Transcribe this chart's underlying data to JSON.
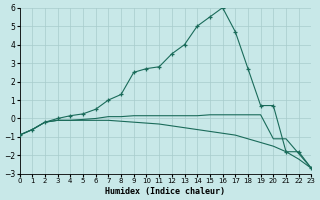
{
  "xlabel": "Humidex (Indice chaleur)",
  "background_color": "#c8e8e8",
  "grid_color": "#a8cccc",
  "line_color": "#1a6b5a",
  "xlim": [
    0,
    23
  ],
  "ylim": [
    -3,
    6
  ],
  "xticks": [
    0,
    1,
    2,
    3,
    4,
    5,
    6,
    7,
    8,
    9,
    10,
    11,
    12,
    13,
    14,
    15,
    16,
    17,
    18,
    19,
    20,
    21,
    22,
    23
  ],
  "yticks": [
    -3,
    -2,
    -1,
    0,
    1,
    2,
    3,
    4,
    5,
    6
  ],
  "line_peaked_x": [
    0,
    1,
    2,
    3,
    4,
    5,
    6,
    7,
    8,
    9,
    10,
    11,
    12,
    13,
    14,
    15,
    16,
    17,
    18,
    19,
    20,
    21,
    22,
    23
  ],
  "line_peaked_y": [
    -0.9,
    -0.6,
    -0.2,
    0.0,
    0.15,
    0.25,
    0.5,
    1.0,
    1.3,
    2.5,
    2.7,
    2.8,
    3.5,
    4.0,
    5.0,
    5.5,
    6.0,
    4.7,
    2.7,
    0.7,
    0.7,
    -1.8,
    -1.8,
    -2.7
  ],
  "line_flat_x": [
    0,
    1,
    2,
    3,
    4,
    5,
    6,
    7,
    8,
    9,
    10,
    11,
    12,
    13,
    14,
    15,
    16,
    17,
    18,
    19,
    20,
    21,
    22,
    23
  ],
  "line_flat_y": [
    -0.9,
    -0.6,
    -0.2,
    -0.1,
    -0.1,
    -0.05,
    0.0,
    0.1,
    0.1,
    0.15,
    0.15,
    0.15,
    0.15,
    0.15,
    0.15,
    0.2,
    0.2,
    0.2,
    0.2,
    0.2,
    -1.1,
    -1.1,
    -1.9,
    -2.7
  ],
  "line_decline_x": [
    0,
    1,
    2,
    3,
    4,
    5,
    6,
    7,
    8,
    9,
    10,
    11,
    12,
    13,
    14,
    15,
    16,
    17,
    18,
    19,
    20,
    21,
    22,
    23
  ],
  "line_decline_y": [
    -0.9,
    -0.6,
    -0.2,
    -0.1,
    -0.1,
    -0.1,
    -0.1,
    -0.1,
    -0.15,
    -0.2,
    -0.25,
    -0.3,
    -0.4,
    -0.5,
    -0.6,
    -0.7,
    -0.8,
    -0.9,
    -1.1,
    -1.3,
    -1.5,
    -1.8,
    -2.2,
    -2.7
  ]
}
